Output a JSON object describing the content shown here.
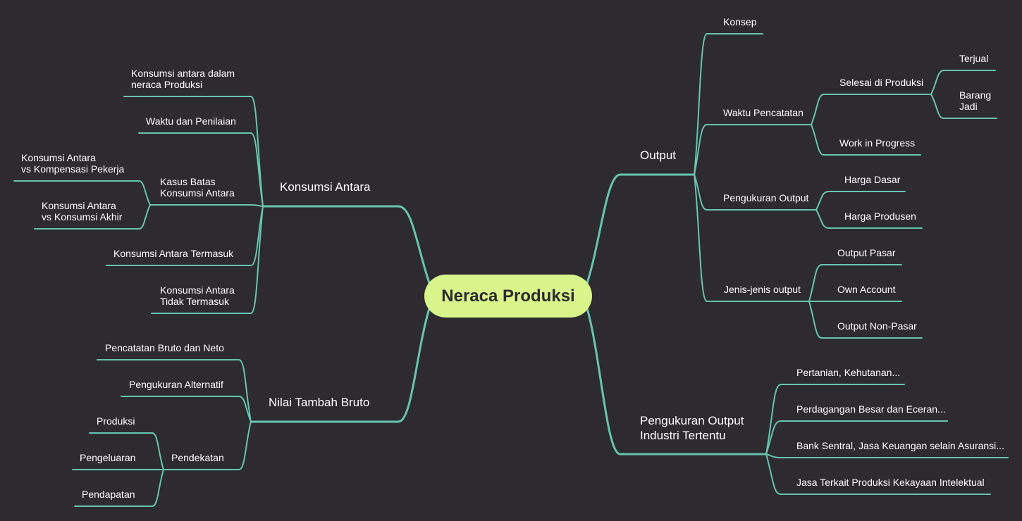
{
  "colors": {
    "background": "#2d2a30",
    "connector": "#67c5b0",
    "root_fill": "#d8f48a",
    "root_text": "#2d2a30",
    "text": "#ffffff"
  },
  "root": {
    "label": "Neraca Produksi"
  },
  "branches": {
    "output": {
      "label": "Output",
      "konsep": "Konsep",
      "waktu_pencatatan": {
        "label": "Waktu Pencatatan",
        "selesai_di_produksi": {
          "label": "Selesai di Produksi",
          "terjual": "Terjual",
          "barang_jadi": "Barang\nJadi"
        },
        "work_in_progress": "Work in Progress"
      },
      "pengukuran_output": {
        "label": "Pengukuran Output",
        "harga_dasar": "Harga Dasar",
        "harga_produsen": "Harga Produsen"
      },
      "jenis_output": {
        "label": "Jenis-jenis output",
        "output_pasar": "Output Pasar",
        "own_account": "Own Account",
        "output_non_pasar": "Output Non-Pasar"
      }
    },
    "pengukuran_industri": {
      "label": "Pengukuran Output\nIndustri Tertentu",
      "pertanian": "Pertanian, Kehutanan...",
      "perdagangan": "Perdagangan Besar dan Eceran...",
      "bank_sentral": "Bank Sentral, Jasa Keuangan selain Asuransi...",
      "jasa_kekayaan": "Jasa Terkait Produksi Kekayaan Intelektual"
    },
    "konsumsi_antara": {
      "label": "Konsumsi Antara",
      "dalam_neraca": "Konsumsi antara dalam\nneraca Produksi",
      "waktu_penilaian": "Waktu dan Penilaian",
      "kasus_batas": {
        "label": "Kasus Batas\nKonsumsi Antara",
        "vs_kompensasi": "Konsumsi Antara\nvs Kompensasi Pekerja",
        "vs_akhir": "Konsumsi Antara\nvs Konsumsi Akhir"
      },
      "termasuk": "Konsumsi Antara Termasuk",
      "tidak_termasuk": "Konsumsi Antara\nTidak Termasuk"
    },
    "nilai_tambah_bruto": {
      "label": "Nilai Tambah Bruto",
      "bruto_neto": "Pencatatan Bruto dan Neto",
      "alternatif": "Pengukuran Alternatif",
      "pendekatan": {
        "label": "Pendekatan",
        "produksi": "Produksi",
        "pengeluaran": "Pengeluaran",
        "pendapatan": "Pendapatan"
      }
    }
  }
}
